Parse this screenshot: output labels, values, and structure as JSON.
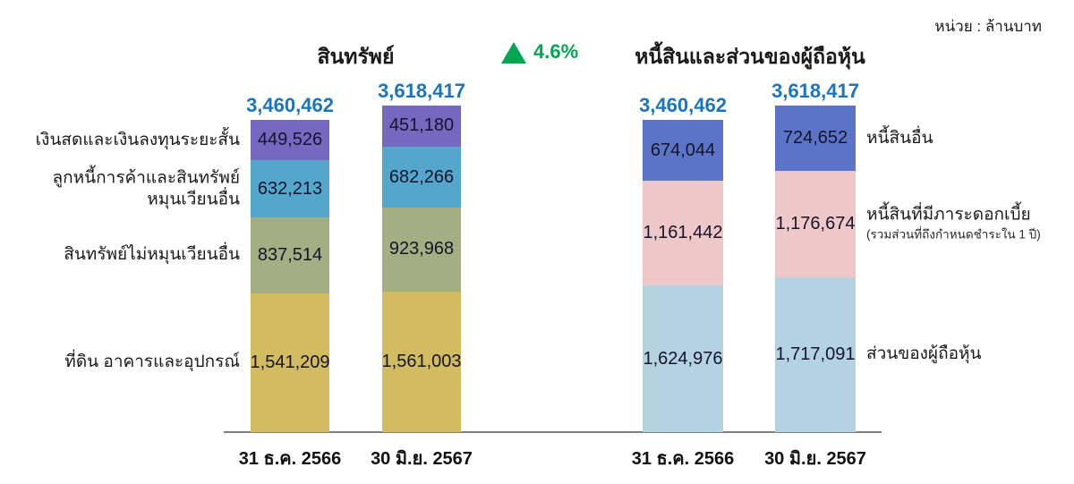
{
  "header": {
    "unit_label": "หน่วย : ล้านบาท",
    "growth_label": "4.6%",
    "colors": {
      "growth_green": "#00a651",
      "total_label_blue": "#1b75bc",
      "axis_line_gray": "#808080"
    }
  },
  "chart_data": [
    {
      "type": "bar",
      "stacked": true,
      "title": "สินทรัพย์",
      "categories": [
        "31 ธ.ค. 2566",
        "30 มิ.ย. 2567"
      ],
      "totals": [
        3460462,
        3618417
      ],
      "labels_position": "left",
      "series": [
        {
          "name": "ที่ดิน อาคารและอุปกรณ์",
          "color": "#d2bb60",
          "values": [
            1541209,
            1561003
          ]
        },
        {
          "name": "สินทรัพย์ไม่หมุนเวียนอื่น",
          "color": "#a3af82",
          "values": [
            837514,
            923968
          ]
        },
        {
          "name": "ลูกหนี้การค้าและสินทรัพย์หมุนเวียนอื่น",
          "color": "#55a6cc",
          "values": [
            632213,
            682266
          ]
        },
        {
          "name": "เงินสดและเงินลงทุนระยะสั้น",
          "color": "#7668c0",
          "values": [
            449526,
            451180
          ]
        }
      ]
    },
    {
      "type": "bar",
      "stacked": true,
      "title": "หนี้สินและส่วนของผู้ถือหุ้น",
      "categories": [
        "31 ธ.ค. 2566",
        "30 มิ.ย. 2567"
      ],
      "totals": [
        3460462,
        3618417
      ],
      "labels_position": "right",
      "series": [
        {
          "name": "ส่วนของผู้ถือหุ้น",
          "color": "#b3d2e2",
          "values": [
            1624976,
            1717091
          ]
        },
        {
          "name": "หนี้สินที่มีภาระดอกเบี้ย",
          "subtitle": "(รวมส่วนที่ถึงกำหนดชำระใน 1 ปี)",
          "color": "#eec7c9",
          "values": [
            1161442,
            1176674
          ]
        },
        {
          "name": "หนี้สินอื่น",
          "color": "#5b74c7",
          "values": [
            674044,
            724652
          ]
        }
      ]
    }
  ]
}
